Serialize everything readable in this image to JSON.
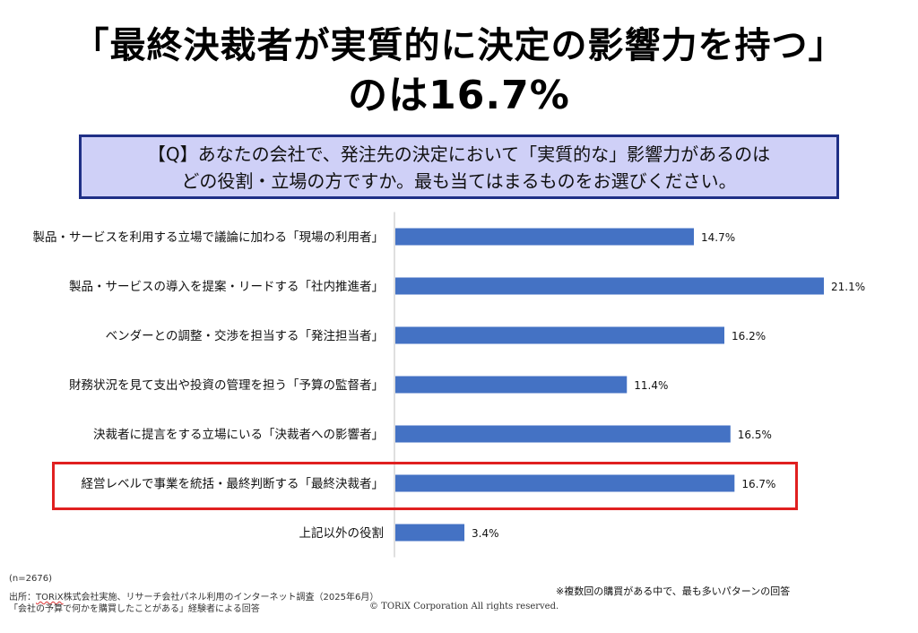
{
  "title_line1": "「最終決裁者が実質的に決定の影響力を持つ」",
  "title_line2": "のは16.7%",
  "question_line1": "【Q】あなたの会社で、発注先の決定において「実質的な」影響力があるのは",
  "question_line2": "どの役割・立場の方ですか。最も当てはまるものをお選びください。",
  "footer": {
    "n": "(n=2676)",
    "source_prefix": "出所：",
    "source_brand": "TORiX",
    "source_rest": "株式会社実施、リサーチ会社パネル利用のインターネット調査（2025年6月）",
    "source_line2": "「会社の予算で何かを購買したことがある」経験者による回答",
    "copyright": "© TORiX Corporation All rights reserved.",
    "footnote": "※複数回の購買がある中で、最も多いパターンの回答"
  },
  "chart_data": {
    "type": "bar",
    "orientation": "horizontal",
    "categories": [
      "製品・サービスを利用する立場で議論に加わる「現場の利用者」",
      "製品・サービスの導入を提案・リードする「社内推進者」",
      "ベンダーとの調整・交渉を担当する「発注担当者」",
      "財務状況を見て支出や投資の管理を担う「予算の監督者」",
      "決裁者に提言をする立場にいる「決裁者への影響者」",
      "経営レベルで事業を統括・最終判断する「最終決裁者」",
      "上記以外の役割"
    ],
    "values": [
      14.7,
      21.1,
      16.2,
      11.4,
      16.5,
      16.7,
      3.4
    ],
    "value_labels": [
      "14.7%",
      "21.1%",
      "16.2%",
      "11.4%",
      "16.5%",
      "16.7%",
      "3.4%"
    ],
    "xlim": [
      0,
      21.1
    ],
    "bar_color": "#4472c4",
    "highlight_index": 5,
    "highlight_color": "#e02020",
    "grid": false
  }
}
